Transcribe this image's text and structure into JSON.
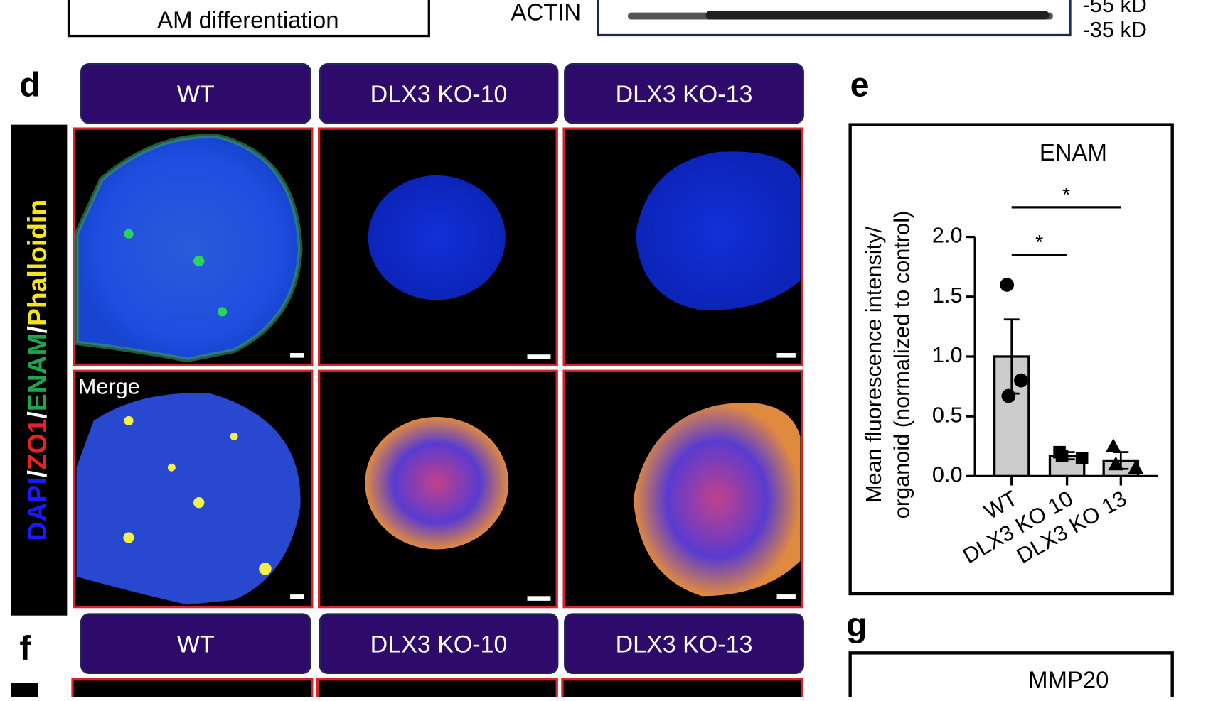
{
  "top": {
    "box_label": "AM differentiation",
    "blot_label": "ACTIN",
    "markers": [
      "-55 kD",
      "-35 kD"
    ]
  },
  "panel_d": {
    "letter": "d",
    "headers": [
      "WT",
      "DLX3 KO-10",
      "DLX3 KO-13"
    ],
    "stain_parts": [
      "DAPI",
      "/",
      "ZO1",
      "/",
      "ENAM",
      "/",
      "Phalloidin"
    ],
    "merge_label": "Merge"
  },
  "panel_e": {
    "letter": "e"
  },
  "panel_f": {
    "letter": "f",
    "headers": [
      "WT",
      "DLX3 KO-10",
      "DLX3 KO-13"
    ]
  },
  "panel_g": {
    "letter": "g",
    "title": "MMP20"
  },
  "chart_data": {
    "type": "bar",
    "title": "ENAM",
    "ylabel": [
      "Mean fluorescence intensity/",
      "organoid (normalized to control)"
    ],
    "categories": [
      "WT",
      "DLX3 KO 10",
      "DLX3 KO 13"
    ],
    "values": [
      1.0,
      0.17,
      0.13
    ],
    "errors": [
      0.31,
      0.03,
      0.07
    ],
    "points": [
      [
        1.6,
        0.8,
        0.67
      ],
      [
        0.2,
        0.15,
        0.17
      ],
      [
        0.25,
        0.07,
        0.1
      ]
    ],
    "markers": [
      "circle",
      "square",
      "triangle"
    ],
    "color": "#cccccc",
    "ylim": [
      0,
      2.0
    ],
    "yticks": [
      {
        "value": 0,
        "label": "0.0"
      },
      {
        "value": 0.5,
        "label": "0.5"
      },
      {
        "value": 1,
        "label": "1.0"
      },
      {
        "value": 1.5,
        "label": "1.5"
      },
      {
        "value": 2,
        "label": "2.0"
      }
    ],
    "significance": [
      {
        "label": "*",
        "from": 0,
        "to": 1
      },
      {
        "label": "*",
        "from": 0,
        "to": 2
      }
    ]
  }
}
